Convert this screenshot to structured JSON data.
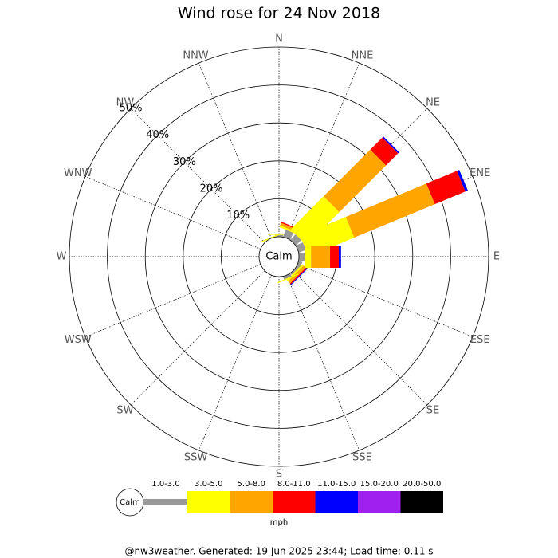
{
  "chart_data": {
    "type": "windrose",
    "title": "Wind rose for 24 Nov 2018",
    "center_label": "Calm",
    "categories": [
      "N",
      "NNE",
      "NE",
      "ENE",
      "E",
      "ESE",
      "SE",
      "SSE",
      "S",
      "SSW",
      "SW",
      "WSW",
      "W",
      "WNW",
      "NW",
      "NNW"
    ],
    "series": [
      {
        "name": "1.0-3.0",
        "color": "#999999",
        "values": [
          0.5,
          2,
          2,
          2,
          1.5,
          1,
          0.5,
          0.8,
          0,
          0,
          0,
          0,
          0,
          0,
          0,
          0
        ]
      },
      {
        "name": "3.0-5.0",
        "color": "#ffff00",
        "values": [
          0.3,
          0.5,
          12.3,
          13,
          1.7,
          0,
          0.5,
          0.3,
          0,
          0,
          0,
          0,
          0,
          0,
          0,
          0.3
        ]
      },
      {
        "name": "5.0-8.0",
        "color": "#ffa500",
        "values": [
          0,
          0.7,
          17.4,
          23,
          5,
          0,
          0.8,
          0,
          0,
          0,
          0,
          0,
          0,
          0,
          0,
          0
        ]
      },
      {
        "name": "8.0-11.0",
        "color": "#ff0000",
        "values": [
          0,
          0.3,
          4.5,
          8.7,
          2.3,
          0,
          0.3,
          0,
          0,
          0,
          0,
          0,
          0,
          0,
          0,
          0
        ]
      },
      {
        "name": "11.0-15.0",
        "color": "#0000ff",
        "values": [
          0,
          0,
          0.4,
          0.7,
          0.6,
          0,
          0.2,
          0,
          0,
          0,
          0,
          0,
          0,
          0,
          0,
          0
        ]
      },
      {
        "name": "15.0-20.0",
        "color": "#a020f0",
        "values": [
          0,
          0,
          0,
          0,
          0,
          0,
          0,
          0,
          0,
          0,
          0,
          0,
          0,
          0,
          0,
          0
        ]
      },
      {
        "name": "20.0-50.0",
        "color": "#000000",
        "values": [
          0,
          0,
          0,
          0,
          0,
          0,
          0,
          0,
          0,
          0,
          0,
          0,
          0,
          0,
          0,
          0
        ]
      }
    ],
    "rlim": [
      0,
      50
    ],
    "rticks": [
      {
        "value": 10,
        "label": "10%"
      },
      {
        "value": 20,
        "label": "20%"
      },
      {
        "value": 30,
        "label": "30%"
      },
      {
        "value": 40,
        "label": "40%"
      },
      {
        "value": 50,
        "label": "50%"
      }
    ],
    "legend_calm": "Calm",
    "legend_unit": "mph",
    "footer": "@nw3weather. Generated: 19 Jun 2025 23:44; Load time: 0.11 s"
  }
}
